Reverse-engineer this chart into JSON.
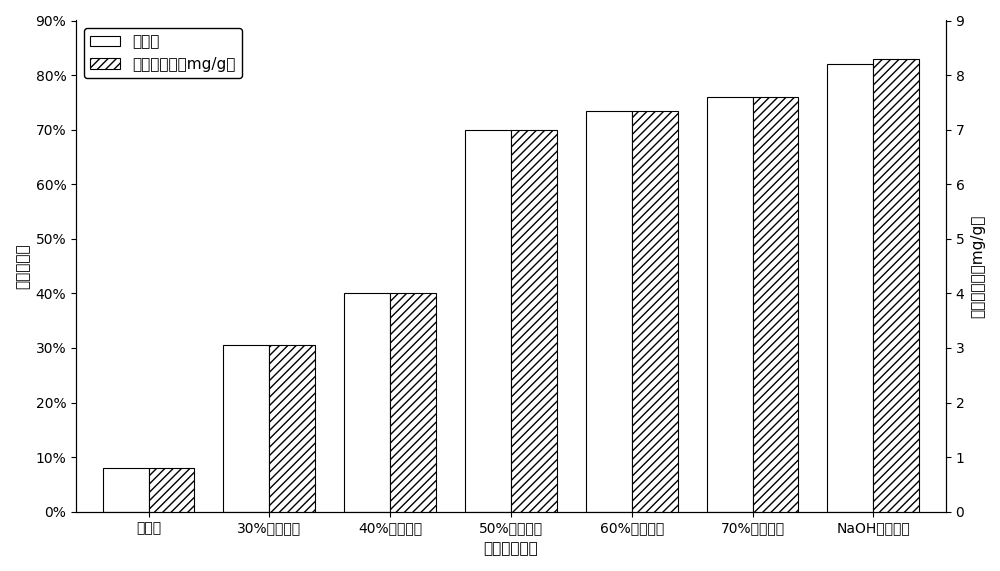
{
  "categories": [
    "铝污泥",
    "30%永石改性",
    "40%永石改性",
    "50%永石改性",
    "60%永石改性",
    "70%永石改性",
    "NaOH改性永石"
  ],
  "removal_rate": [
    0.08,
    0.305,
    0.4,
    0.7,
    0.735,
    0.76,
    0.82
  ],
  "adsorption": [
    0.8,
    3.05,
    4.0,
    7.0,
    7.35,
    7.6,
    8.3
  ],
  "bar_width": 0.38,
  "left_ylim": [
    0,
    0.9
  ],
  "right_ylim": [
    0,
    9
  ],
  "left_yticks": [
    0.0,
    0.1,
    0.2,
    0.3,
    0.4,
    0.5,
    0.6,
    0.7,
    0.8,
    0.9
  ],
  "right_yticks": [
    0,
    1,
    2,
    3,
    4,
    5,
    6,
    7,
    8,
    9
  ],
  "left_yticklabels": [
    "0%",
    "10%",
    "20%",
    "30%",
    "40%",
    "50%",
    "60%",
    "70%",
    "80%",
    "90%"
  ],
  "right_yticklabels": [
    "0",
    "1",
    "2",
    "3",
    "4",
    "5",
    "6",
    "7",
    "8",
    "9"
  ],
  "xlabel": "不同永石配比",
  "left_ylabel": "氨氮去除率",
  "right_ylabel": "平衡吸附量（mg/g）",
  "legend_labels": [
    "去除率",
    "平衡吸附量（mg/g）"
  ],
  "hatch_pattern": "////",
  "tick_fontsize": 10,
  "axis_fontsize": 11,
  "legend_fontsize": 11,
  "figure_facecolor": "white",
  "plot_facecolor": "white"
}
